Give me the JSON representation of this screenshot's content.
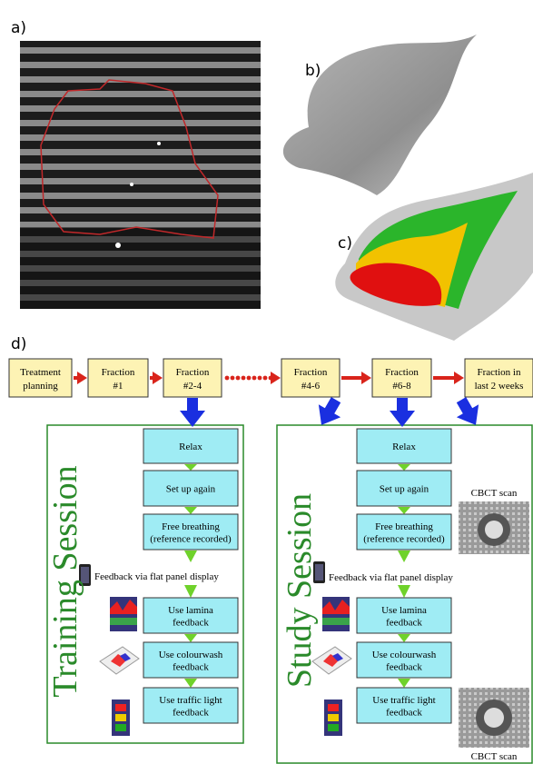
{
  "panels": {
    "a": "a)",
    "b": "b)",
    "c": "c)",
    "d": "d)"
  },
  "timeline": [
    [
      "Treatment",
      "planning"
    ],
    [
      "Fraction",
      "#1"
    ],
    [
      "Fraction",
      "#2-4"
    ],
    [
      "Fraction",
      "#4-6"
    ],
    [
      "Fraction",
      "#6-8"
    ],
    [
      "Fraction in",
      "last 2 weeks"
    ]
  ],
  "sessions": [
    {
      "title": "Training Session",
      "steps": [
        [
          "Relax"
        ],
        [
          "Set up again"
        ],
        [
          "Free breathing",
          "(reference recorded)"
        ],
        [
          "Use lamina",
          "feedback"
        ],
        [
          "Use colourwash",
          "feedback"
        ],
        [
          "Use traffic light",
          "feedback"
        ]
      ],
      "feedback_note": "Feedback via flat panel display"
    },
    {
      "title": "Study Session",
      "steps": [
        [
          "Relax"
        ],
        [
          "Set up again"
        ],
        [
          "Free breathing",
          "(reference recorded)"
        ],
        [
          "Use lamina",
          "feedback"
        ],
        [
          "Use colourwash",
          "feedback"
        ],
        [
          "Use traffic light",
          "feedback"
        ]
      ],
      "feedback_note": "Feedback via flat panel display",
      "cbct": [
        "CBCT scan",
        "CBCT scan"
      ]
    }
  ]
}
